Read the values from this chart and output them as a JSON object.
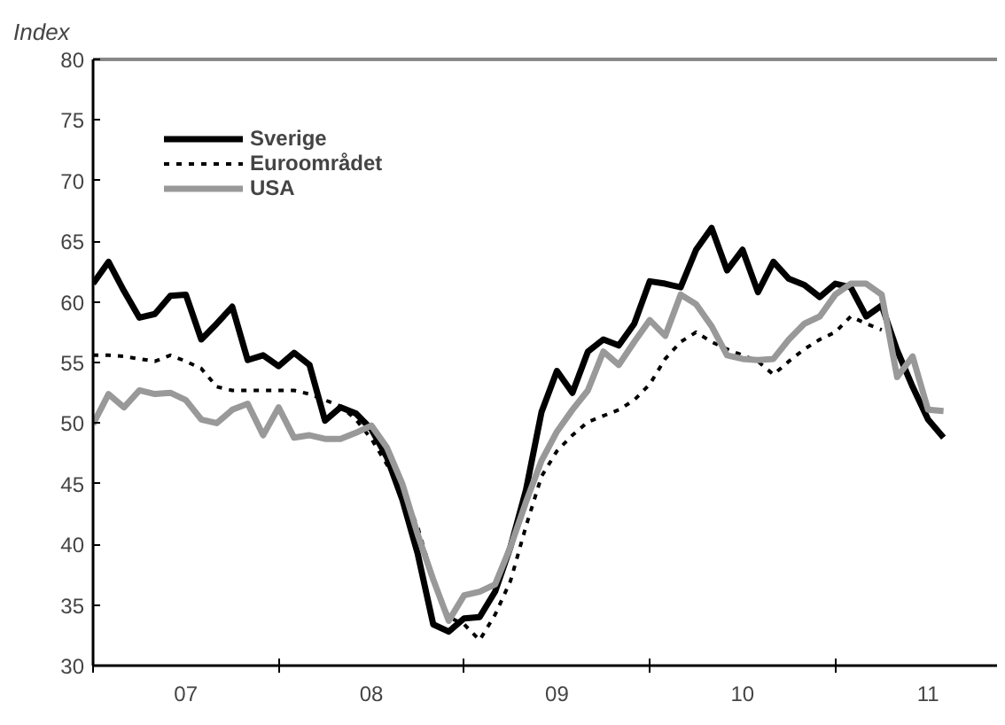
{
  "chart_data": {
    "type": "line",
    "ylabel": "Index",
    "x": [
      "2007-01",
      "2007-02",
      "2007-03",
      "2007-04",
      "2007-05",
      "2007-06",
      "2007-07",
      "2007-08",
      "2007-09",
      "2007-10",
      "2007-11",
      "2007-12",
      "2008-01",
      "2008-02",
      "2008-03",
      "2008-04",
      "2008-05",
      "2008-06",
      "2008-07",
      "2008-08",
      "2008-09",
      "2008-10",
      "2008-11",
      "2008-12",
      "2009-01",
      "2009-02",
      "2009-03",
      "2009-04",
      "2009-05",
      "2009-06",
      "2009-07",
      "2009-08",
      "2009-09",
      "2009-10",
      "2009-11",
      "2009-12",
      "2010-01",
      "2010-02",
      "2010-03",
      "2010-04",
      "2010-05",
      "2010-06",
      "2010-07",
      "2010-08",
      "2010-09",
      "2010-10",
      "2010-11",
      "2010-12",
      "2011-01",
      "2011-02",
      "2011-03",
      "2011-04",
      "2011-05",
      "2011-06",
      "2011-07",
      "2011-08"
    ],
    "series": [
      {
        "name": "Sverige",
        "color": "#000000",
        "line_style": "solid",
        "values": [
          61.5,
          63.3,
          60.9,
          58.7,
          59.0,
          60.5,
          60.6,
          56.9,
          58.2,
          59.6,
          55.2,
          55.6,
          54.7,
          55.8,
          54.8,
          50.2,
          51.3,
          50.8,
          49.5,
          47.2,
          43.7,
          39.2,
          33.4,
          32.8,
          33.9,
          34.0,
          36.1,
          39.8,
          44.5,
          50.9,
          54.3,
          52.5,
          55.9,
          56.9,
          56.4,
          58.2,
          61.7,
          61.5,
          61.2,
          64.3,
          66.1,
          62.6,
          64.3,
          60.8,
          63.3,
          61.9,
          61.4,
          60.4,
          61.5,
          61.2,
          58.8,
          59.7,
          56.0,
          53.0,
          50.3,
          48.8
        ]
      },
      {
        "name": "Euroområdet",
        "color": "#000000",
        "line_style": "dotted",
        "values": [
          55.6,
          55.6,
          55.5,
          55.3,
          55.1,
          55.6,
          55.1,
          54.5,
          53.0,
          52.7,
          52.7,
          52.7,
          52.7,
          52.7,
          52.4,
          51.9,
          51.4,
          50.3,
          48.7,
          46.6,
          44.5,
          41.4,
          37.1,
          34.0,
          33.4,
          32.1,
          34.2,
          37.0,
          41.5,
          45.6,
          47.7,
          49.0,
          50.1,
          50.6,
          51.1,
          51.9,
          53.2,
          55.3,
          56.7,
          57.5,
          56.7,
          56.1,
          55.6,
          55.1,
          54.0,
          55.1,
          56.1,
          56.9,
          57.5,
          58.8,
          58.2,
          57.7,
          null,
          null,
          null,
          null
        ]
      },
      {
        "name": "USA",
        "color": "#999999",
        "line_style": "solid",
        "values": [
          49.9,
          52.4,
          51.3,
          52.7,
          52.4,
          52.5,
          51.9,
          50.3,
          50.0,
          51.1,
          51.6,
          49.0,
          51.3,
          48.8,
          49.0,
          48.7,
          48.7,
          49.2,
          49.8,
          48.0,
          45.0,
          40.8,
          37.1,
          33.7,
          35.8,
          36.1,
          36.7,
          39.8,
          43.5,
          46.9,
          49.3,
          51.1,
          52.7,
          55.9,
          54.8,
          56.7,
          58.5,
          57.2,
          60.6,
          59.8,
          58.0,
          55.6,
          55.3,
          55.2,
          55.3,
          56.9,
          58.2,
          58.8,
          60.6,
          61.5,
          61.5,
          60.6,
          53.8,
          55.5,
          51.1,
          51.0
        ]
      }
    ],
    "xlim": [
      "2007-01-01",
      "2011-11-15"
    ],
    "xticks": [
      {
        "value": "2007-01-01",
        "label": null
      },
      {
        "value": "2007-07-01",
        "label": "07"
      },
      {
        "value": "2008-01-01",
        "label": null
      },
      {
        "value": "2008-07-01",
        "label": "08"
      },
      {
        "value": "2009-01-01",
        "label": null
      },
      {
        "value": "2009-07-01",
        "label": "09"
      },
      {
        "value": "2010-01-01",
        "label": null
      },
      {
        "value": "2010-07-01",
        "label": "10"
      },
      {
        "value": "2011-01-01",
        "label": null
      },
      {
        "value": "2011-07-01",
        "label": "11"
      }
    ],
    "ylim": [
      30,
      80
    ],
    "yticks": [
      30,
      35,
      40,
      45,
      50,
      55,
      60,
      65,
      70,
      75,
      80
    ],
    "grid": false,
    "legend": "top left",
    "marker": "none"
  }
}
